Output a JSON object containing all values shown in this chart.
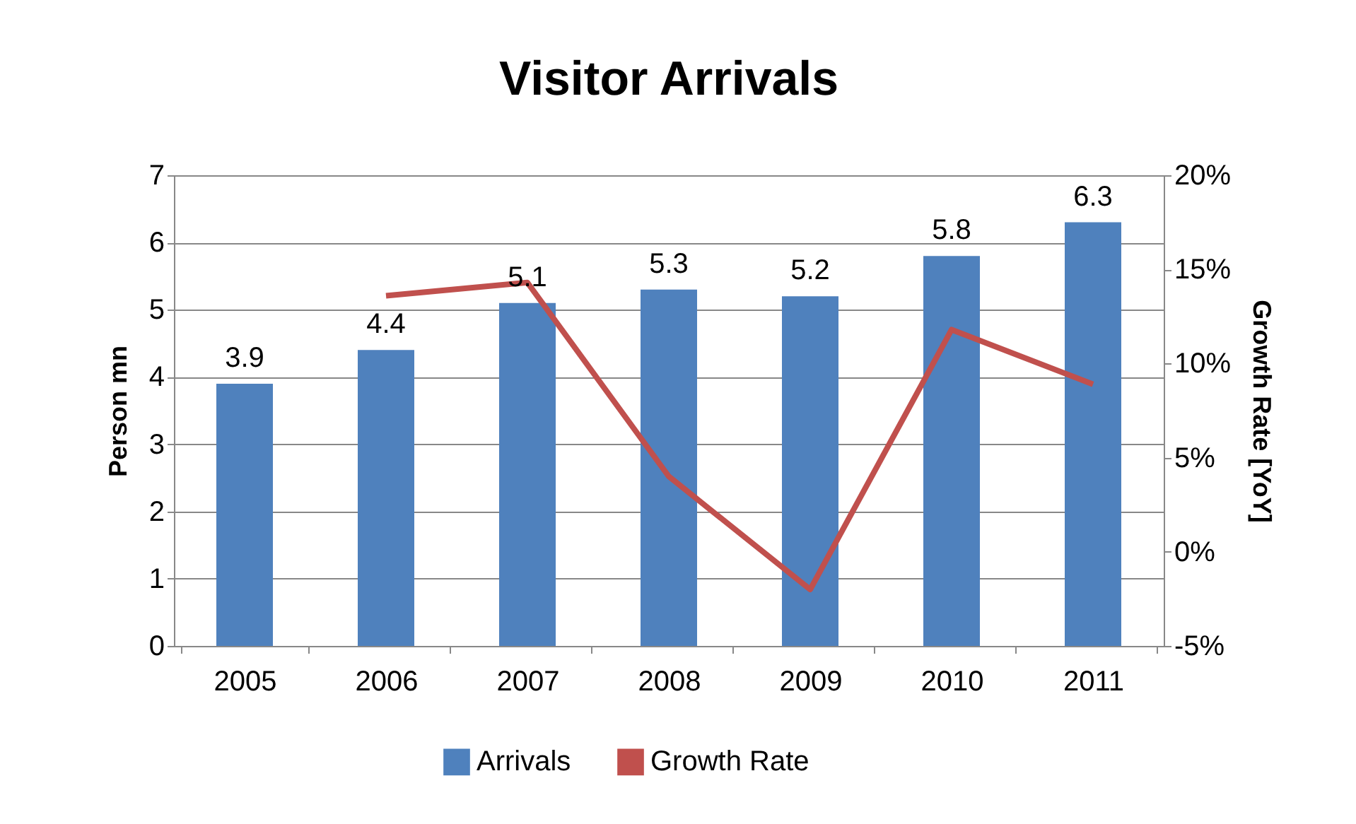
{
  "chart_data": {
    "type": "bar",
    "title": "Visitor Arrivals",
    "categories": [
      "2005",
      "2006",
      "2007",
      "2008",
      "2009",
      "2010",
      "2011"
    ],
    "series": [
      {
        "name": "Arrivals",
        "color": "#4f81bd",
        "values": [
          3.9,
          4.4,
          5.1,
          5.3,
          5.2,
          5.8,
          6.3
        ],
        "value_labels": [
          "3.9",
          "4.4",
          "5.1",
          "5.3",
          "5.2",
          "5.8",
          "6.3"
        ]
      },
      {
        "name": "Growth Rate",
        "type": "line",
        "axis": "y2",
        "color": "#c0504d",
        "values": [
          null,
          13.6,
          14.3,
          4.0,
          -2.0,
          11.8,
          8.9
        ]
      }
    ],
    "ylabel": "Person mn",
    "y2label": "Growth Rate [YoY]",
    "ylim": [
      0,
      7
    ],
    "yticks": [
      0,
      1,
      2,
      3,
      4,
      5,
      6,
      7
    ],
    "y2lim": [
      -5,
      20
    ],
    "y2ticks": [
      {
        "value": -5,
        "label": "-5%"
      },
      {
        "value": 0,
        "label": "0%"
      },
      {
        "value": 5,
        "label": "5%"
      },
      {
        "value": 10,
        "label": "10%"
      },
      {
        "value": 15,
        "label": "15%"
      },
      {
        "value": 20,
        "label": "20%"
      }
    ],
    "grid": "y",
    "legend": "bottom"
  }
}
